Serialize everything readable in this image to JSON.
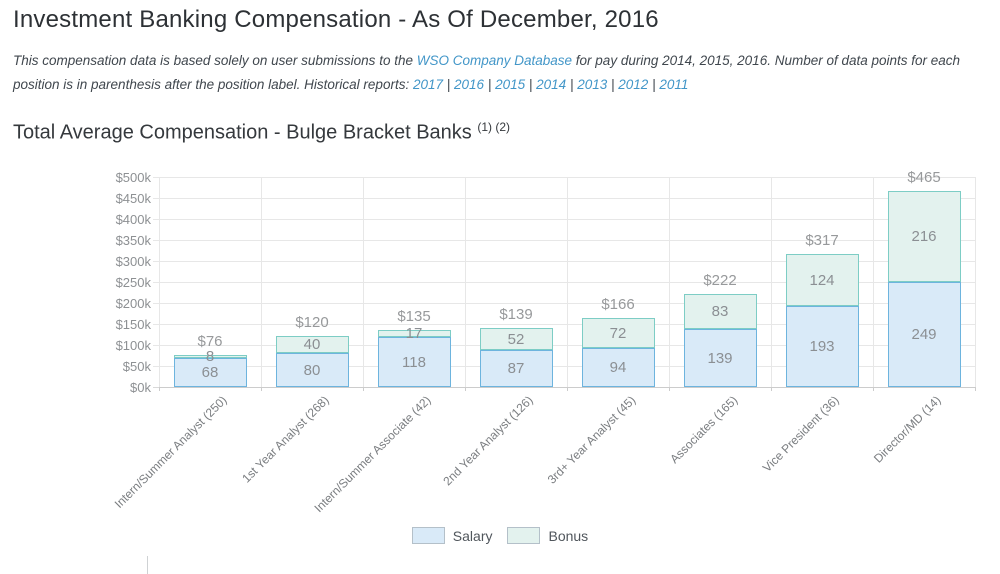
{
  "header": {
    "title": "Investment Banking Compensation - As Of December, 2016"
  },
  "intro": {
    "before_link": "This compensation data is based solely on user submissions to the ",
    "link_text": "WSO Company Database",
    "after_link": " for pay during 2014, 2015, 2016. Number of data points for each position is in parenthesis after the position label. Historical reports: ",
    "years": [
      "2017",
      "2016",
      "2015",
      "2014",
      "2013",
      "2012",
      "2011"
    ],
    "year_separator": " | ",
    "link_color": "#4296c8"
  },
  "section": {
    "title": "Total Average Compensation - Bulge Bracket Banks",
    "superscript": "(1) (2)"
  },
  "chart_data": {
    "type": "bar",
    "stacked": true,
    "title": "Total Average Compensation - Bulge Bracket Banks (1) (2)",
    "categories": [
      "Intern/Summer Analyst (250)",
      "1st Year Analyst (268)",
      "Intern/Summer Associate (42)",
      "2nd Year Analyst (126)",
      "3rd+ Year Analyst (45)",
      "Associates (165)",
      "Vice President (36)",
      "Director/MD (14)"
    ],
    "series": [
      {
        "name": "Salary",
        "values": [
          68,
          80,
          118,
          87,
          94,
          139,
          193,
          249
        ],
        "fill": "#d9eaf8",
        "border": "#6db4de"
      },
      {
        "name": "Bonus",
        "values": [
          8,
          40,
          17,
          52,
          72,
          83,
          124,
          216
        ],
        "fill": "#e3f2ee",
        "border": "#7dcdc5"
      }
    ],
    "totals_k": [
      76,
      120,
      135,
      139,
      166,
      222,
      317,
      465
    ],
    "total_labels": [
      "$76",
      "$120",
      "$135",
      "$139",
      "$166",
      "$222",
      "$317",
      "$465"
    ],
    "y_axis": {
      "min": 0,
      "max": 500,
      "tick_step": 50,
      "tick_labels_top_down": [
        "$500k",
        "$450k",
        "$400k",
        "$350k",
        "$300k",
        "$250k",
        "$200k",
        "$150k",
        "$100k",
        "$50k",
        "$0k"
      ]
    },
    "grid": true,
    "legend": {
      "position": "bottom",
      "entries": [
        "Salary",
        "Bonus"
      ]
    },
    "units": "thousands of USD per year"
  }
}
